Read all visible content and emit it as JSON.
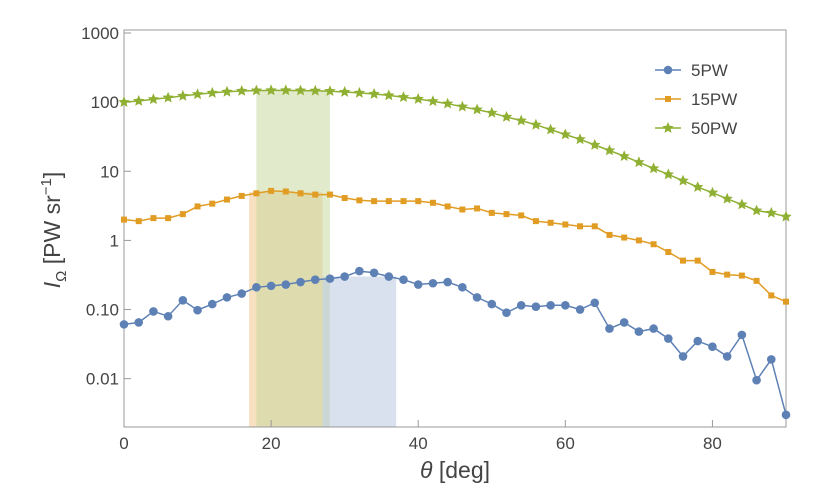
{
  "chart_data": {
    "type": "line",
    "xlabel": [
      "θ",
      " [deg]"
    ],
    "ylabel": [
      "I",
      "Ω",
      " [PW sr",
      "−1",
      "]"
    ],
    "xlim": [
      0,
      90
    ],
    "xticks": [
      0,
      20,
      40,
      60,
      80
    ],
    "ylim": [
      0.002,
      1000
    ],
    "log_y": true,
    "yticks": [
      {
        "value": 0.01,
        "label": "0.01"
      },
      {
        "value": 0.1,
        "label": "0.10"
      },
      1,
      10,
      100,
      1000
    ],
    "legend": "upper-right",
    "x": [
      0,
      2,
      4,
      6,
      8,
      10,
      12,
      14,
      16,
      18,
      20,
      22,
      24,
      26,
      28,
      30,
      32,
      34,
      36,
      38,
      40,
      42,
      44,
      46,
      48,
      50,
      52,
      54,
      56,
      58,
      60,
      62,
      64,
      66,
      68,
      70,
      72,
      74,
      76,
      78,
      80,
      82,
      84,
      86,
      88,
      90
    ],
    "series": [
      {
        "name": "5PW",
        "color": "#5e81b5",
        "marker": "circle",
        "values": [
          0.061,
          0.065,
          0.094,
          0.08,
          0.136,
          0.098,
          0.12,
          0.15,
          0.17,
          0.21,
          0.22,
          0.23,
          0.25,
          0.27,
          0.28,
          0.3,
          0.36,
          0.34,
          0.3,
          0.27,
          0.23,
          0.24,
          0.25,
          0.21,
          0.15,
          0.12,
          0.09,
          0.115,
          0.11,
          0.115,
          0.115,
          0.1,
          0.125,
          0.053,
          0.065,
          0.048,
          0.053,
          0.038,
          0.021,
          0.035,
          0.029,
          0.021,
          0.043,
          0.0095,
          0.019,
          0.003
        ]
      },
      {
        "name": "15PW",
        "color": "#e19c24",
        "marker": "square",
        "values": [
          2.0,
          1.9,
          2.1,
          2.1,
          2.4,
          3.1,
          3.4,
          3.9,
          4.4,
          4.8,
          5.2,
          5.1,
          4.8,
          4.6,
          4.6,
          4.1,
          3.8,
          3.7,
          3.7,
          3.7,
          3.7,
          3.5,
          3.1,
          2.8,
          2.9,
          2.5,
          2.4,
          2.3,
          1.9,
          1.8,
          1.7,
          1.6,
          1.6,
          1.2,
          1.1,
          1.0,
          0.88,
          0.68,
          0.51,
          0.51,
          0.35,
          0.32,
          0.31,
          0.26,
          0.16,
          0.13
        ]
      },
      {
        "name": "50PW",
        "color": "#8fb032",
        "marker": "star",
        "values": [
          100,
          104,
          110,
          116,
          123,
          130,
          136,
          141,
          145,
          147,
          148,
          148,
          147,
          146,
          144,
          140,
          136,
          131,
          125,
          118,
          111,
          103,
          95,
          86,
          78,
          70,
          61,
          54,
          47,
          40,
          34,
          29,
          24,
          20,
          16.5,
          13.5,
          11,
          9,
          7.3,
          5.9,
          4.9,
          4.0,
          3.3,
          2.7,
          2.5,
          2.2
        ]
      }
    ],
    "shaded_regions": [
      {
        "xrange": [
          17,
          27
        ],
        "top": 5.0,
        "color": "#f2c98c"
      },
      {
        "xrange": [
          18,
          28
        ],
        "top": 148,
        "color": "#c9d9a0"
      },
      {
        "xrange": [
          27,
          37
        ],
        "top": 0.3,
        "color": "#b9c7e0"
      }
    ]
  }
}
